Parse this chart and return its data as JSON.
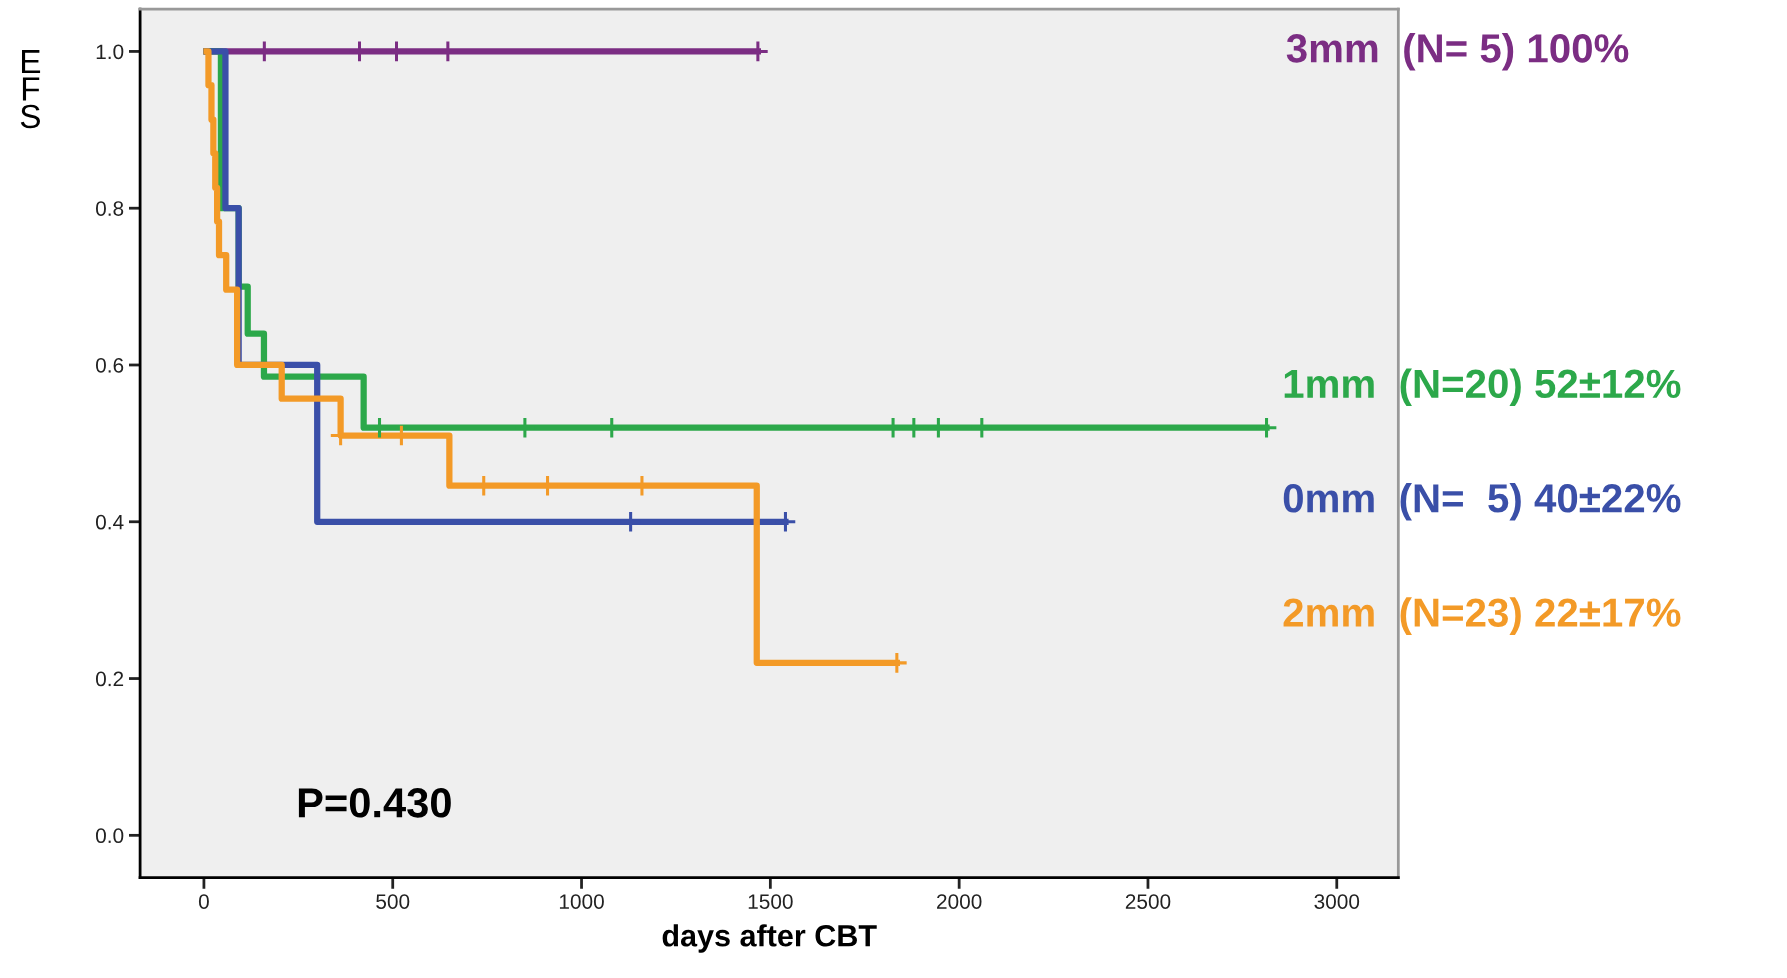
{
  "chart_data": {
    "type": "step",
    "xlabel": "days after CBT",
    "ylabel": "EFS",
    "xlim": [
      -169,
      3163
    ],
    "ylim": [
      -0.054,
      1.054
    ],
    "xticks": [
      0,
      500,
      1000,
      1500,
      2000,
      2500,
      3000
    ],
    "yticks": [
      {
        "value": 0,
        "label": "0.0"
      },
      {
        "value": 0.2,
        "label": "0.2"
      },
      {
        "value": 0.4,
        "label": "0.4"
      },
      {
        "value": 0.6,
        "label": "0.6"
      },
      {
        "value": 0.8,
        "label": "0.8"
      },
      {
        "value": 1,
        "label": "1.0"
      }
    ],
    "grid": false,
    "legend": "right",
    "line_style": "solid",
    "annotations": [
      "P=0.430"
    ],
    "series": [
      {
        "name": "3mm  (N= 5) 100%",
        "color": "#7b2d83",
        "x": [
          7,
          1467
        ],
        "values": [
          1,
          1
        ]
      },
      {
        "name": "1mm  (N=20) 52±12%",
        "color": "#2ca84a",
        "x": [
          7,
          45,
          92,
          116,
          159,
          423,
          2814
        ],
        "values": [
          1,
          0.8,
          0.7,
          0.64,
          0.585,
          0.52,
          0.52
        ]
      },
      {
        "name": "0mm  (N=  5) 40±22%",
        "color": "#3a4fa8",
        "x": [
          7,
          57,
          92,
          300,
          1540
        ],
        "values": [
          1,
          0.8,
          0.6,
          0.4,
          0.4
        ]
      },
      {
        "name": "2mm  (N=23) 22±17%",
        "color": "#f39a27",
        "x": [
          7,
          12,
          20,
          25,
          30,
          35,
          40,
          59,
          88,
          206,
          362,
          650,
          1464,
          1835
        ],
        "values": [
          1,
          0.957,
          0.913,
          0.87,
          0.826,
          0.783,
          0.74,
          0.696,
          0.6,
          0.557,
          0.51,
          0.446,
          0.22,
          0.22
        ]
      },
      {
        "type": "scatter",
        "marker": "cross",
        "color": "#7b2d83",
        "x": [
          160,
          412,
          510,
          646,
          1467
        ],
        "values": [
          1,
          1,
          1,
          1,
          1
        ]
      },
      {
        "type": "scatter",
        "marker": "cross",
        "color": "#2ca84a",
        "x": [
          465,
          850,
          1080,
          1825,
          1880,
          1945,
          2060,
          2814
        ],
        "values": [
          0.52,
          0.52,
          0.52,
          0.52,
          0.52,
          0.52,
          0.52,
          0.52
        ]
      },
      {
        "type": "scatter",
        "marker": "cross",
        "color": "#3a4fa8",
        "x": [
          1130,
          1540
        ],
        "values": [
          0.4,
          0.4
        ]
      },
      {
        "type": "scatter",
        "marker": "cross",
        "color": "#f39a27",
        "x": [
          362,
          523,
          741,
          910,
          1160,
          1835
        ],
        "values": [
          0.51,
          0.51,
          0.446,
          0.446,
          0.446,
          0.22
        ]
      }
    ]
  }
}
